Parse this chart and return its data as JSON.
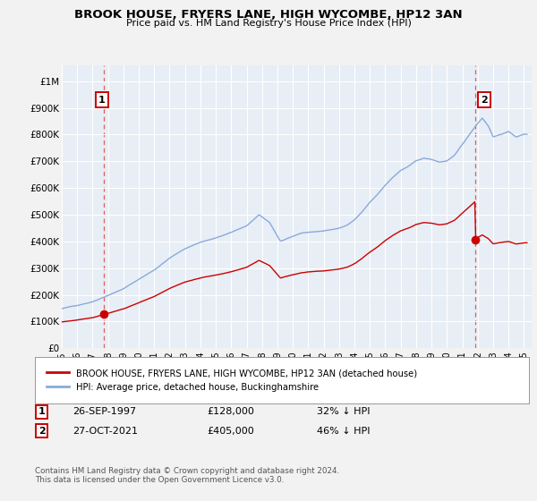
{
  "title": "BROOK HOUSE, FRYERS LANE, HIGH WYCOMBE, HP12 3AN",
  "subtitle": "Price paid vs. HM Land Registry's House Price Index (HPI)",
  "ylabel_ticks": [
    "£0",
    "£100K",
    "£200K",
    "£300K",
    "£400K",
    "£500K",
    "£600K",
    "£700K",
    "£800K",
    "£900K",
    "£1M"
  ],
  "ytick_values": [
    0,
    100000,
    200000,
    300000,
    400000,
    500000,
    600000,
    700000,
    800000,
    900000,
    1000000
  ],
  "ylim": [
    0,
    1060000
  ],
  "xlim_start": 1995.0,
  "xlim_end": 2025.5,
  "xticks": [
    1995,
    1996,
    1997,
    1998,
    1999,
    2000,
    2001,
    2002,
    2003,
    2004,
    2005,
    2006,
    2007,
    2008,
    2009,
    2010,
    2011,
    2012,
    2013,
    2014,
    2015,
    2016,
    2017,
    2018,
    2019,
    2020,
    2021,
    2022,
    2023,
    2024,
    2025
  ],
  "sale1_x": 1997.74,
  "sale1_y": 128000,
  "sale1_label": "1",
  "sale2_x": 2021.82,
  "sale2_y": 405000,
  "sale2_label": "2",
  "red_line_color": "#cc0000",
  "blue_line_color": "#88aadd",
  "marker_color": "#cc0000",
  "vline_color": "#dd4444",
  "annotation_box_color": "#cc0000",
  "legend_label1": "BROOK HOUSE, FRYERS LANE, HIGH WYCOMBE, HP12 3AN (detached house)",
  "legend_label2": "HPI: Average price, detached house, Buckinghamshire",
  "background_color": "#f2f2f2",
  "plot_bg_color": "#e8eef5"
}
